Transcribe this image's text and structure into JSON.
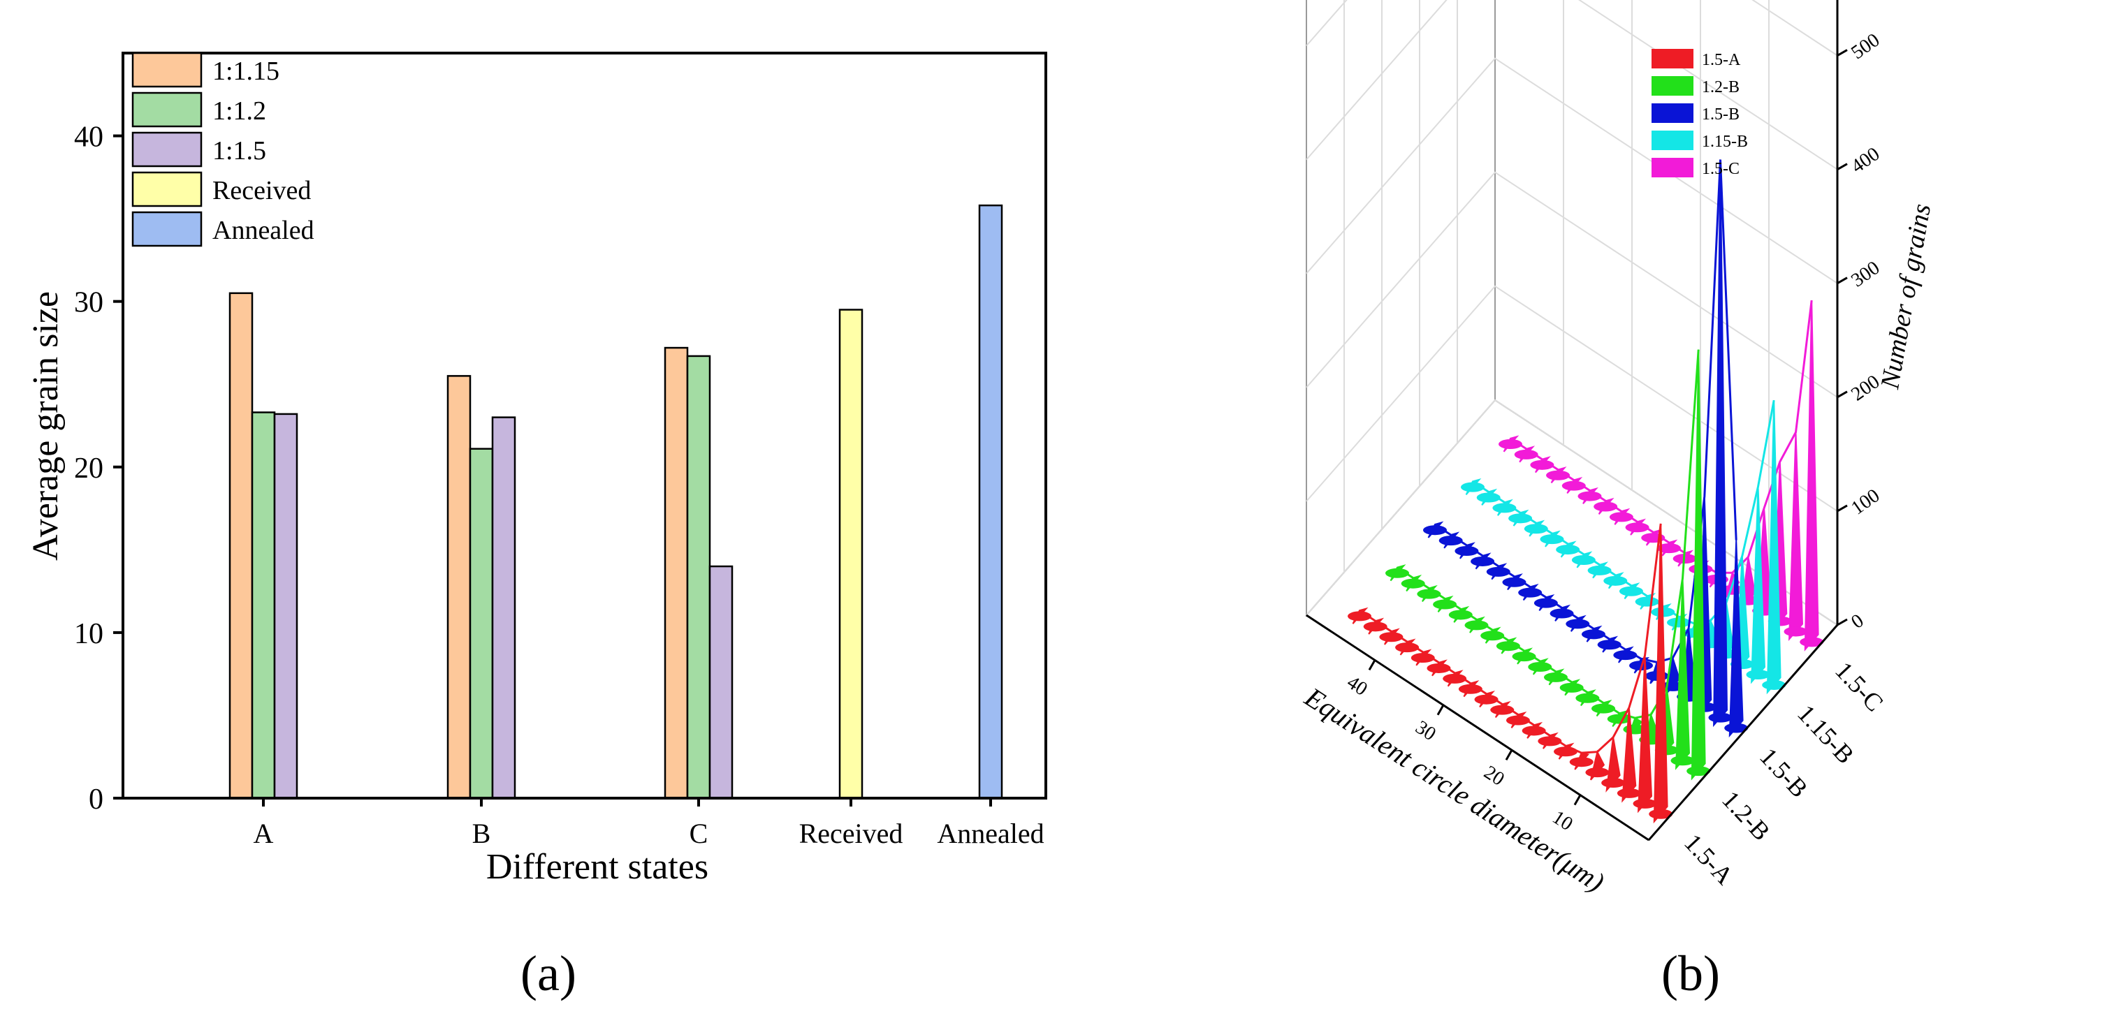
{
  "panels": {
    "a_label": "(a)",
    "b_label": "(b)"
  },
  "chart_data": [
    {
      "type": "bar",
      "title": "",
      "xlabel": "Different states",
      "ylabel": "Average grain size",
      "ylim": [
        0,
        45
      ],
      "yticks": [
        0,
        10,
        20,
        30,
        40
      ],
      "categories": [
        "A",
        "B",
        "C",
        "Received",
        "Annealed"
      ],
      "series": [
        {
          "name": "1:1.15",
          "color": "#fdc89a",
          "values": [
            30.5,
            25.5,
            27.2,
            null,
            null
          ]
        },
        {
          "name": "1:1.2",
          "color": "#a3dca3",
          "values": [
            23.3,
            21.1,
            26.7,
            null,
            null
          ]
        },
        {
          "name": "1:1.5",
          "color": "#c6b6dd",
          "values": [
            23.2,
            23.0,
            14.0,
            null,
            null
          ]
        },
        {
          "name": "Received",
          "color": "#ffffa8",
          "values": [
            null,
            null,
            null,
            29.5,
            null
          ]
        },
        {
          "name": "Annealed",
          "color": "#9ebcf2",
          "values": [
            null,
            null,
            null,
            null,
            35.8
          ]
        }
      ],
      "legend_position": "top-left",
      "grid": false
    },
    {
      "type": "3d-waterfall",
      "xlabel": "Equivalent circle diameter(μm)",
      "zlabel": "Number of grains",
      "x_ticks": [
        10,
        20,
        30,
        40
      ],
      "z_ticks": [
        0,
        100,
        200,
        300,
        400,
        500
      ],
      "zlim": [
        0,
        550
      ],
      "x_range": [
        1,
        45
      ],
      "grid": true,
      "legend_position": "top-left",
      "series": [
        {
          "name": "1.5-A",
          "color": "#ee1c25",
          "values": [
            255,
            130,
            75,
            40,
            18,
            8,
            5,
            5,
            5,
            5,
            5,
            5,
            5,
            5,
            5,
            5,
            5,
            5,
            5,
            5
          ]
        },
        {
          "name": "1.2-B",
          "color": "#22e01a",
          "values": [
            370,
            160,
            55,
            22,
            10,
            5,
            5,
            5,
            5,
            5,
            5,
            5,
            5,
            5,
            5,
            5,
            5,
            5,
            5,
            5
          ]
        },
        {
          "name": "1.5-B",
          "color": "#0a14d6",
          "values": [
            165,
            490,
            185,
            60,
            25,
            12,
            6,
            5,
            5,
            5,
            5,
            5,
            5,
            5,
            5,
            5,
            5,
            5,
            5,
            5
          ]
        },
        {
          "name": "1.15-B",
          "color": "#14e6e6",
          "values": [
            250,
            165,
            95,
            45,
            20,
            8,
            5,
            5,
            5,
            5,
            5,
            5,
            5,
            5,
            5,
            5,
            5,
            5,
            5,
            5
          ]
        },
        {
          "name": "1.5-C",
          "color": "#f21bd8",
          "values": [
            300,
            175,
            140,
            90,
            38,
            15,
            6,
            5,
            5,
            5,
            5,
            5,
            5,
            5,
            5,
            5,
            5,
            5,
            5,
            5
          ]
        }
      ]
    }
  ]
}
